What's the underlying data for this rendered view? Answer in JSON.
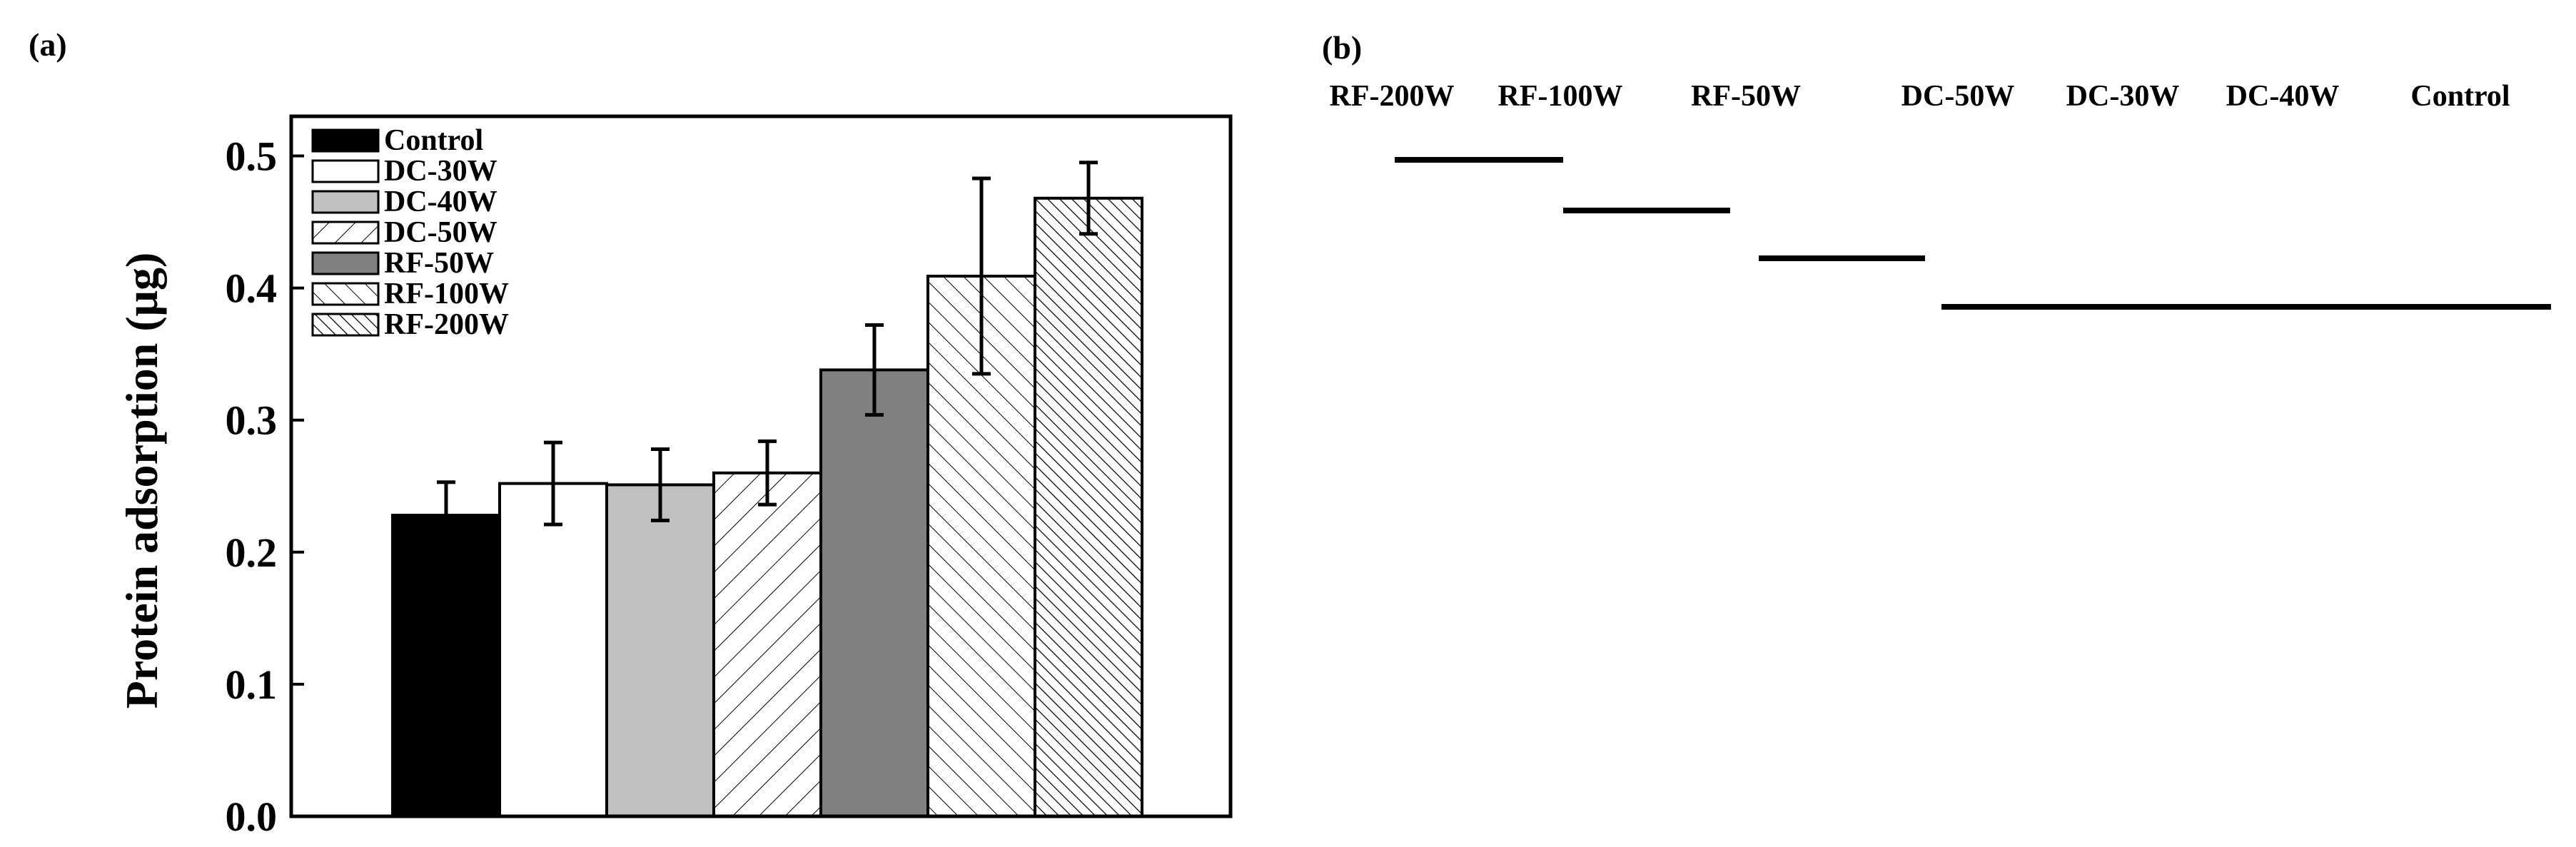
{
  "panel_a_label": "(a)",
  "panel_b_label": "(b)",
  "chart_data": [
    {
      "type": "bar",
      "ylabel": "Protein adsorption (μg)",
      "xlabel": "",
      "ylim": [
        0,
        0.53
      ],
      "yticks": [
        "0.0",
        "0.1",
        "0.2",
        "0.3",
        "0.4",
        "0.5"
      ],
      "categories": [
        "Control",
        "DC-30W",
        "DC-40W",
        "DC-50W",
        "RF-50W",
        "RF-100W",
        "RF-200W"
      ],
      "values": [
        0.228,
        0.252,
        0.251,
        0.26,
        0.338,
        0.409,
        0.468
      ],
      "errors": [
        0.025,
        0.031,
        0.027,
        0.024,
        0.034,
        0.074,
        0.027
      ],
      "legend": {
        "placement": "top-left",
        "entries": [
          {
            "label": "Control",
            "fill": "#000000",
            "pattern": "solid"
          },
          {
            "label": "DC-30W",
            "fill": "#ffffff",
            "pattern": "solid"
          },
          {
            "label": "DC-40W",
            "fill": "#c0c0c0",
            "pattern": "solid"
          },
          {
            "label": "DC-50W",
            "fill": "#ffffff",
            "pattern": "sparse-diagonal"
          },
          {
            "label": "RF-50W",
            "fill": "#808080",
            "pattern": "solid"
          },
          {
            "label": "RF-100W",
            "fill": "#ffffff",
            "pattern": "back-diagonal"
          },
          {
            "label": "RF-200W",
            "fill": "#ffffff",
            "pattern": "dense-back-diagonal"
          }
        ]
      },
      "grid": false
    },
    {
      "type": "other",
      "description_type": "bar-code ranking",
      "labels": [
        "RF-200W",
        "RF-100W",
        "RF-50W",
        "DC-50W",
        "DC-30W",
        "DC-40W",
        "Control"
      ],
      "groups": [
        {
          "members": [
            "RF-200W"
          ],
          "level": 1
        },
        {
          "members": [
            "RF-100W"
          ],
          "level": 2
        },
        {
          "members": [
            "RF-50W"
          ],
          "level": 3
        },
        {
          "members": [
            "DC-50W",
            "DC-30W",
            "DC-40W",
            "Control"
          ],
          "level": 4
        }
      ]
    }
  ]
}
